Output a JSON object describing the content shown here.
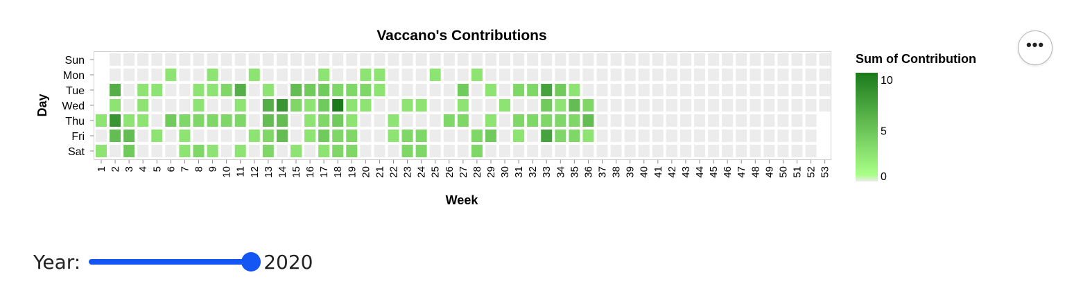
{
  "chart_data": {
    "type": "heatmap",
    "title": "Vaccano's Contributions",
    "xlabel": "Week",
    "ylabel": "Day",
    "days": [
      "Sun",
      "Mon",
      "Tue",
      "Wed",
      "Thu",
      "Fri",
      "Sat"
    ],
    "weeks": [
      1,
      2,
      3,
      4,
      5,
      6,
      7,
      8,
      9,
      10,
      11,
      12,
      13,
      14,
      15,
      16,
      17,
      18,
      19,
      20,
      21,
      22,
      23,
      24,
      25,
      26,
      27,
      28,
      29,
      30,
      31,
      32,
      33,
      34,
      35,
      36,
      37,
      38,
      39,
      40,
      41,
      42,
      43,
      44,
      45,
      46,
      47,
      48,
      49,
      50,
      51,
      52,
      53
    ],
    "values": [
      [
        null,
        0,
        0,
        0,
        0,
        0,
        0,
        0,
        0,
        0,
        0,
        0,
        0,
        0,
        0,
        0,
        0,
        0,
        0,
        0,
        0,
        0,
        0,
        0,
        0,
        0,
        0,
        0,
        0,
        0,
        0,
        0,
        0,
        0,
        0,
        0,
        0,
        0,
        0,
        0,
        0,
        0,
        0,
        0,
        0,
        0,
        0,
        0,
        0,
        0,
        0,
        0,
        0
      ],
      [
        null,
        0,
        0,
        0,
        0,
        2,
        0,
        0,
        2,
        0,
        0,
        2,
        0,
        0,
        0,
        0,
        2,
        0,
        0,
        2,
        2,
        0,
        0,
        0,
        2,
        0,
        0,
        2,
        0,
        0,
        0,
        0,
        0,
        0,
        0,
        0,
        0,
        0,
        0,
        0,
        0,
        0,
        0,
        0,
        0,
        0,
        0,
        0,
        0,
        0,
        0,
        0,
        0
      ],
      [
        null,
        6,
        0,
        2,
        2,
        0,
        0,
        2,
        2,
        3,
        6,
        0,
        2,
        0,
        5,
        4,
        4,
        3,
        3,
        3,
        2,
        0,
        0,
        0,
        0,
        0,
        4,
        0,
        2,
        0,
        3,
        3,
        7,
        4,
        2,
        0,
        0,
        0,
        0,
        0,
        0,
        0,
        0,
        0,
        0,
        0,
        0,
        0,
        0,
        0,
        0,
        0,
        0
      ],
      [
        null,
        2,
        0,
        2,
        0,
        0,
        0,
        2,
        0,
        0,
        2,
        0,
        6,
        8,
        3,
        2,
        4,
        10,
        2,
        2,
        0,
        0,
        2,
        2,
        0,
        0,
        2,
        0,
        0,
        2,
        0,
        0,
        4,
        2,
        5,
        3,
        0,
        0,
        0,
        0,
        0,
        0,
        0,
        0,
        0,
        0,
        0,
        0,
        0,
        0,
        0,
        0,
        0
      ],
      [
        2,
        8,
        2,
        2,
        0,
        4,
        3,
        3,
        3,
        3,
        3,
        0,
        5,
        5,
        0,
        2,
        3,
        4,
        2,
        0,
        0,
        2,
        0,
        0,
        0,
        3,
        3,
        0,
        2,
        0,
        3,
        3,
        3,
        3,
        3,
        5,
        0,
        0,
        0,
        0,
        0,
        0,
        0,
        0,
        0,
        0,
        0,
        0,
        0,
        0,
        0,
        0,
        null
      ],
      [
        0,
        5,
        5,
        0,
        2,
        0,
        2,
        0,
        0,
        0,
        0,
        2,
        3,
        5,
        0,
        2,
        4,
        3,
        3,
        0,
        0,
        2,
        3,
        3,
        0,
        0,
        0,
        3,
        4,
        0,
        2,
        0,
        7,
        3,
        3,
        2,
        0,
        0,
        0,
        0,
        0,
        0,
        0,
        0,
        0,
        0,
        0,
        0,
        0,
        0,
        0,
        0,
        null
      ],
      [
        2,
        0,
        4,
        0,
        0,
        0,
        2,
        3,
        2,
        0,
        2,
        0,
        3,
        0,
        2,
        0,
        2,
        3,
        3,
        0,
        0,
        0,
        3,
        3,
        0,
        0,
        0,
        3,
        0,
        0,
        0,
        0,
        0,
        0,
        0,
        0,
        0,
        0,
        0,
        0,
        0,
        0,
        0,
        0,
        0,
        0,
        0,
        0,
        0,
        0,
        0,
        0,
        null
      ]
    ],
    "legend": {
      "title": "Sum of Contribution",
      "ticks": [
        10,
        5,
        0
      ],
      "domain": [
        0,
        10
      ],
      "position": "right"
    },
    "colors": {
      "low": "#aaff88",
      "high": "#1b7a1b",
      "zero": "#ececec"
    }
  },
  "controls": {
    "year_label": "Year:",
    "year_value": "2020",
    "menu_glyph": "•••"
  }
}
